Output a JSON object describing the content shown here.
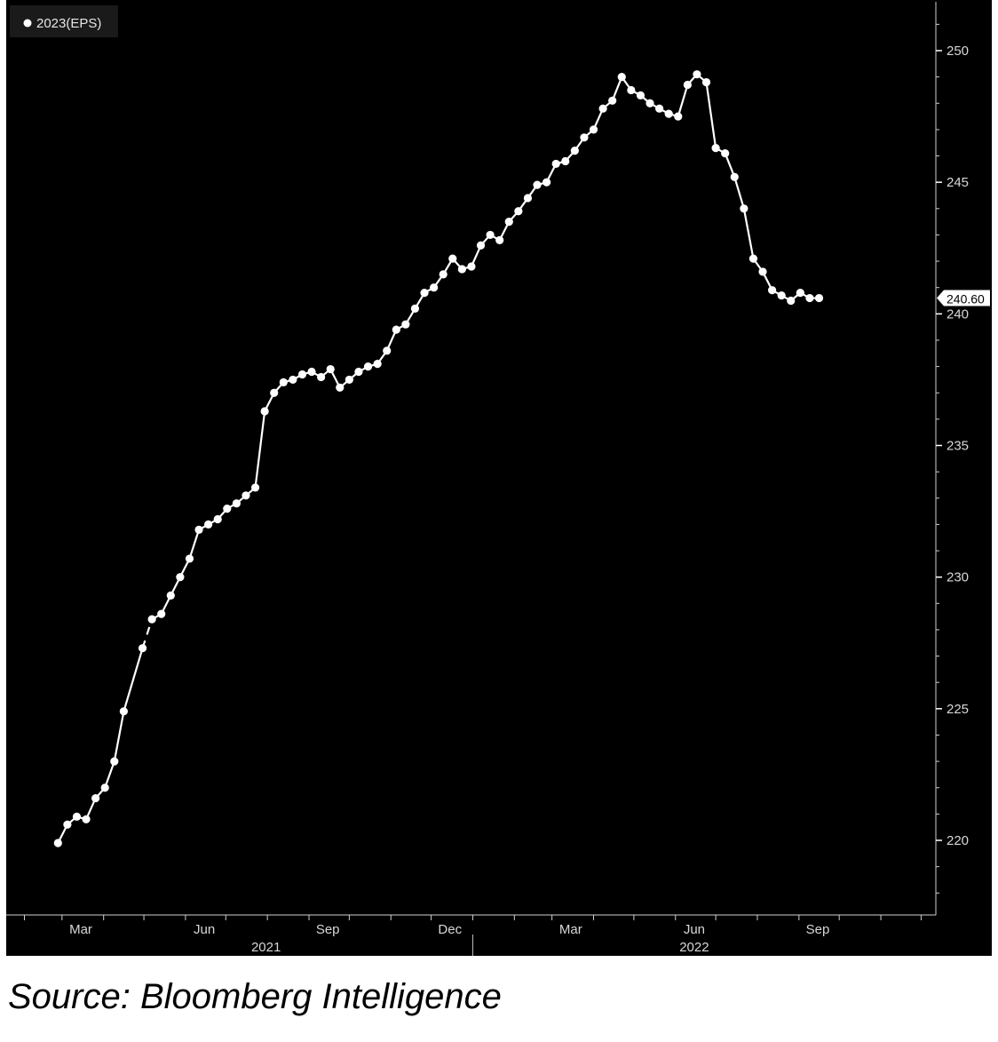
{
  "chart_data": {
    "type": "line",
    "title": "",
    "xlabel": "",
    "ylabel": "",
    "ylim": [
      217,
      252
    ],
    "yticks": [
      220,
      225,
      230,
      235,
      240,
      245,
      250
    ],
    "month_ticks": [
      "Mar",
      "Jun",
      "Sep",
      "Dec",
      "Mar",
      "Jun",
      "Sep"
    ],
    "year_labels": [
      "2021",
      "2022"
    ],
    "legend": {
      "position": "top-left",
      "entries": [
        {
          "label": "2023(EPS)",
          "color": "#ffffff"
        }
      ]
    },
    "last_value_label": "240.60",
    "grid": false,
    "series": [
      {
        "name": "2023(EPS)",
        "color": "#ffffff",
        "marker": "circle",
        "dashed_segments": [
          [
            8,
            9
          ]
        ],
        "points": [
          [
            "2021-02-26",
            219.9
          ],
          [
            "2021-03-05",
            220.6
          ],
          [
            "2021-03-12",
            220.9
          ],
          [
            "2021-03-19",
            220.8
          ],
          [
            "2021-03-26",
            221.6
          ],
          [
            "2021-04-02",
            222.0
          ],
          [
            "2021-04-09",
            223.0
          ],
          [
            "2021-04-16",
            224.9
          ],
          [
            "2021-04-30",
            227.3
          ],
          [
            "2021-05-07",
            228.4
          ],
          [
            "2021-05-14",
            228.6
          ],
          [
            "2021-05-21",
            229.3
          ],
          [
            "2021-05-28",
            230.0
          ],
          [
            "2021-06-04",
            230.7
          ],
          [
            "2021-06-11",
            231.8
          ],
          [
            "2021-06-18",
            232.0
          ],
          [
            "2021-06-25",
            232.2
          ],
          [
            "2021-07-02",
            232.6
          ],
          [
            "2021-07-09",
            232.8
          ],
          [
            "2021-07-16",
            233.1
          ],
          [
            "2021-07-23",
            233.4
          ],
          [
            "2021-07-30",
            236.3
          ],
          [
            "2021-08-06",
            237.0
          ],
          [
            "2021-08-13",
            237.4
          ],
          [
            "2021-08-20",
            237.5
          ],
          [
            "2021-08-27",
            237.7
          ],
          [
            "2021-09-03",
            237.8
          ],
          [
            "2021-09-10",
            237.6
          ],
          [
            "2021-09-17",
            237.9
          ],
          [
            "2021-09-24",
            237.2
          ],
          [
            "2021-10-01",
            237.5
          ],
          [
            "2021-10-08",
            237.8
          ],
          [
            "2021-10-15",
            238.0
          ],
          [
            "2021-10-22",
            238.1
          ],
          [
            "2021-10-29",
            238.6
          ],
          [
            "2021-11-05",
            239.4
          ],
          [
            "2021-11-12",
            239.6
          ],
          [
            "2021-11-19",
            240.2
          ],
          [
            "2021-11-26",
            240.8
          ],
          [
            "2021-12-03",
            241.0
          ],
          [
            "2021-12-10",
            241.5
          ],
          [
            "2021-12-17",
            242.1
          ],
          [
            "2021-12-24",
            241.7
          ],
          [
            "2021-12-31",
            241.8
          ],
          [
            "2022-01-07",
            242.6
          ],
          [
            "2022-01-14",
            243.0
          ],
          [
            "2022-01-21",
            242.8
          ],
          [
            "2022-01-28",
            243.5
          ],
          [
            "2022-02-04",
            243.9
          ],
          [
            "2022-02-11",
            244.4
          ],
          [
            "2022-02-18",
            244.9
          ],
          [
            "2022-02-25",
            245.0
          ],
          [
            "2022-03-04",
            245.7
          ],
          [
            "2022-03-11",
            245.8
          ],
          [
            "2022-03-18",
            246.2
          ],
          [
            "2022-03-25",
            246.7
          ],
          [
            "2022-04-01",
            247.0
          ],
          [
            "2022-04-08",
            247.8
          ],
          [
            "2022-04-15",
            248.1
          ],
          [
            "2022-04-22",
            249.0
          ],
          [
            "2022-04-29",
            248.5
          ],
          [
            "2022-05-06",
            248.3
          ],
          [
            "2022-05-13",
            248.0
          ],
          [
            "2022-05-20",
            247.8
          ],
          [
            "2022-05-27",
            247.6
          ],
          [
            "2022-06-03",
            247.5
          ],
          [
            "2022-06-10",
            248.7
          ],
          [
            "2022-06-17",
            249.1
          ],
          [
            "2022-06-24",
            248.8
          ],
          [
            "2022-07-01",
            246.3
          ],
          [
            "2022-07-08",
            246.1
          ],
          [
            "2022-07-15",
            245.2
          ],
          [
            "2022-07-22",
            244.0
          ],
          [
            "2022-07-29",
            242.1
          ],
          [
            "2022-08-05",
            241.6
          ],
          [
            "2022-08-12",
            240.9
          ],
          [
            "2022-08-19",
            240.7
          ],
          [
            "2022-08-26",
            240.5
          ],
          [
            "2022-09-02",
            240.8
          ],
          [
            "2022-09-09",
            240.6
          ],
          [
            "2022-09-16",
            240.6
          ]
        ]
      }
    ]
  },
  "source_note": "Source: Bloomberg Intelligence"
}
